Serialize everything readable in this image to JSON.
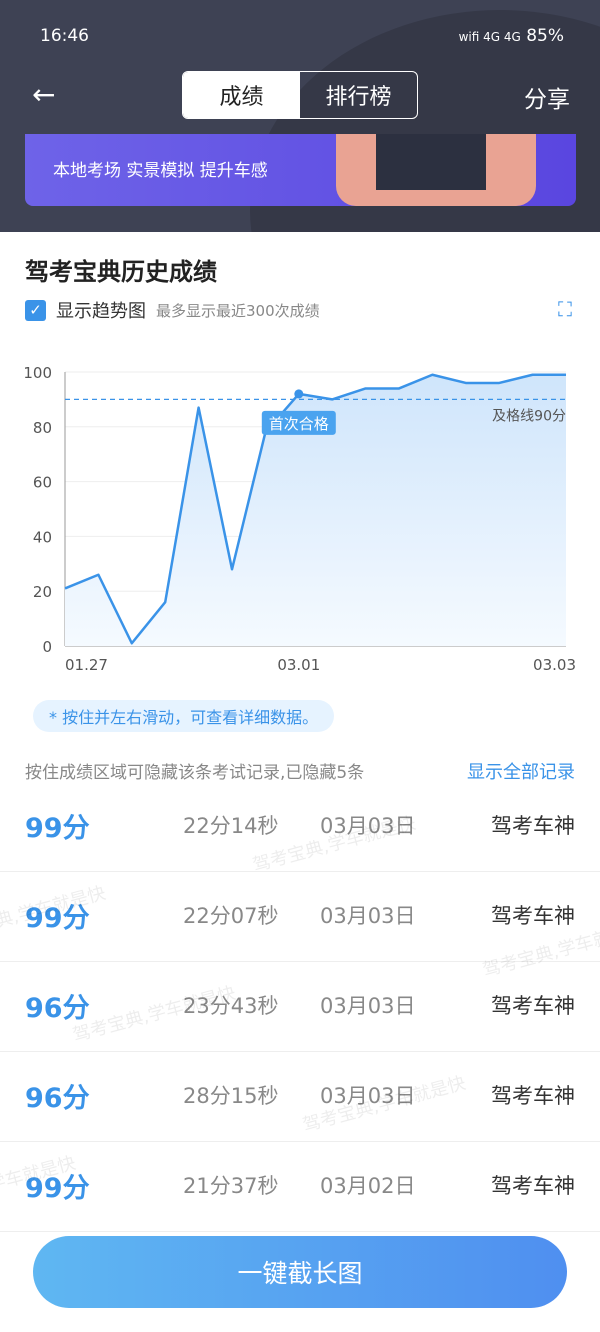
{
  "status": {
    "time": "16:46",
    "icons": "wifi 4G 4G",
    "battery": "85%"
  },
  "nav": {
    "back_icon": "arrow-left-icon",
    "tabs": [
      "成绩",
      "排行榜"
    ],
    "share": "分享"
  },
  "banner": {
    "text": "本地考场 实景模拟 提升车感"
  },
  "page": {
    "title": "驾考宝典历史成绩",
    "show_trend": "显示趋势图",
    "trend_note": "最多显示最近300次成绩",
    "hint": "* 按住并左右滑动，可查看详细数据。",
    "hide_note": "按住成绩区域可隐藏该条考试记录,已隐藏5条",
    "show_all": "显示全部记录",
    "watermark": "驾考宝典,学车就是快",
    "button": "一键截长图"
  },
  "chart_data": {
    "type": "area",
    "ylim": [
      0,
      100
    ],
    "yticks": [
      0,
      20,
      40,
      60,
      80,
      100
    ],
    "xticks": [
      "01.27",
      "03.01",
      "03.03"
    ],
    "values": [
      21,
      26,
      1,
      16,
      87,
      28,
      78,
      92,
      90,
      94,
      94,
      99,
      96,
      96,
      99,
      99
    ],
    "pass_line": {
      "value": 90,
      "label": "及格线90分"
    },
    "first_pass": {
      "index": 7,
      "label": "首次合格"
    },
    "color": "#3a93e8",
    "grid": true
  },
  "records": [
    {
      "score": "99分",
      "time": "22分14秒",
      "date": "03月03日",
      "title": "驾考车神"
    },
    {
      "score": "99分",
      "time": "22分07秒",
      "date": "03月03日",
      "title": "驾考车神"
    },
    {
      "score": "96分",
      "time": "23分43秒",
      "date": "03月03日",
      "title": "驾考车神"
    },
    {
      "score": "96分",
      "time": "28分15秒",
      "date": "03月03日",
      "title": "驾考车神"
    },
    {
      "score": "99分",
      "time": "21分37秒",
      "date": "03月02日",
      "title": "驾考车神"
    }
  ]
}
